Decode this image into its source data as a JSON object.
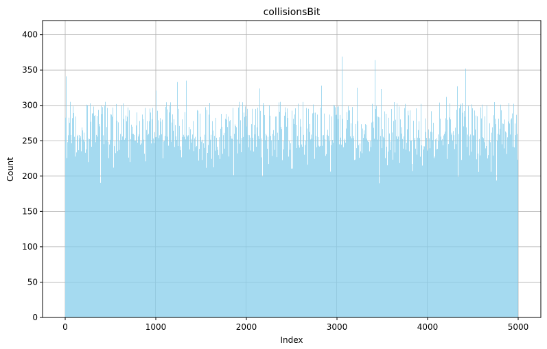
{
  "chart_data": {
    "type": "bar",
    "title": "collisionsBit",
    "xlabel": "Index",
    "ylabel": "Count",
    "xlim": [
      -250,
      5250
    ],
    "ylim": [
      0,
      420
    ],
    "xticks": [
      0,
      1000,
      2000,
      3000,
      4000,
      5000
    ],
    "yticks": [
      0,
      50,
      100,
      150,
      200,
      250,
      300,
      350,
      400
    ],
    "grid": true,
    "legend": "none",
    "bar_color": "#87ceeb",
    "index_start": 0,
    "index_end": 4999,
    "n_bars": 5000,
    "typical_range": [
      120,
      260
    ],
    "max_value": 369,
    "notable_peaks": [
      {
        "x": 15,
        "y": 341
      },
      {
        "x": 55,
        "y": 305
      },
      {
        "x": 1000,
        "y": 321
      },
      {
        "x": 1240,
        "y": 333
      },
      {
        "x": 1340,
        "y": 335
      },
      {
        "x": 1920,
        "y": 305
      },
      {
        "x": 2150,
        "y": 324
      },
      {
        "x": 2830,
        "y": 328
      },
      {
        "x": 3060,
        "y": 369
      },
      {
        "x": 3220,
        "y": 325
      },
      {
        "x": 3420,
        "y": 364
      },
      {
        "x": 3490,
        "y": 323
      },
      {
        "x": 4210,
        "y": 312
      },
      {
        "x": 4330,
        "y": 327
      },
      {
        "x": 4420,
        "y": 352
      },
      {
        "x": 4920,
        "y": 280
      }
    ]
  }
}
